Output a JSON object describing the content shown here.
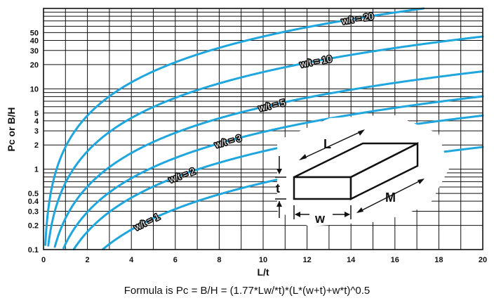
{
  "chart_data": {
    "type": "line",
    "title": "",
    "xlabel": "L/t",
    "ylabel": "Pc or B/H",
    "xlim": [
      0,
      20
    ],
    "ylim": [
      0.1,
      100
    ],
    "yscale": "log",
    "grid": true,
    "x_ticks": [
      "0",
      "2",
      "4",
      "6",
      "8",
      "10",
      "12",
      "14",
      "16",
      "18",
      "20"
    ],
    "y_ticks": [
      {
        "v": 0.1,
        "label": "0.1"
      },
      {
        "v": 0.2,
        "label": "0.2"
      },
      {
        "v": 0.3,
        "label": "0.3"
      },
      {
        "v": 0.4,
        "label": "0.4"
      },
      {
        "v": 0.5,
        "label": "0.5"
      },
      {
        "v": 1,
        "label": "1"
      },
      {
        "v": 2,
        "label": "2"
      },
      {
        "v": 3,
        "label": "3"
      },
      {
        "v": 4,
        "label": "4"
      },
      {
        "v": 5,
        "label": "5"
      },
      {
        "v": 10,
        "label": "10"
      },
      {
        "v": 20,
        "label": "20"
      },
      {
        "v": 30,
        "label": "30"
      },
      {
        "v": 40,
        "label": "40"
      },
      {
        "v": 50,
        "label": "50"
      }
    ],
    "series": [
      {
        "name": "w/t = 1",
        "w_over_t": 1,
        "label_x": 4.7
      },
      {
        "name": "w/t = 2",
        "w_over_t": 2,
        "label_x": 6.3
      },
      {
        "name": "w/t = 3",
        "w_over_t": 3,
        "label_x": 8.4
      },
      {
        "name": "w/t = 5",
        "w_over_t": 5,
        "label_x": 10.4
      },
      {
        "name": "w/t = 10",
        "w_over_t": 10,
        "label_x": 12.4
      },
      {
        "name": "w/t = 20",
        "w_over_t": 20,
        "label_x": 14.3
      }
    ],
    "formula": "Formula is Pc = B/H = (1.77*Lw/*t)*(L*(w+t)+w*t)^0.5",
    "color": "#1fa6dc"
  },
  "diagram": {
    "labels": {
      "L": "L",
      "t": "t",
      "w": "w",
      "M": "M"
    }
  }
}
